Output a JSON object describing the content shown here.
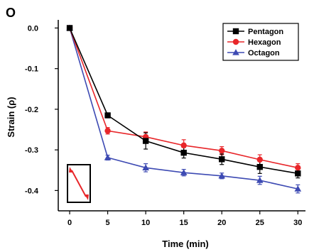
{
  "panel_label": "O",
  "chart_data": {
    "type": "line",
    "xlabel": "Time (min)",
    "ylabel": "Strain (ρ)",
    "x": [
      0,
      5,
      10,
      15,
      20,
      25,
      30
    ],
    "xlim": [
      -1.5,
      31
    ],
    "ylim": [
      -0.45,
      0.02
    ],
    "x_ticks": [
      0,
      5,
      10,
      15,
      20,
      25,
      30
    ],
    "y_ticks": [
      0.0,
      -0.1,
      -0.2,
      -0.3,
      -0.4
    ],
    "y_tick_labels": [
      "0.0",
      "-0.1",
      "-0.2",
      "-0.3",
      "-0.4"
    ],
    "grid": false,
    "legend_position": "top-right",
    "series": [
      {
        "name": "Pentagon",
        "color": "#000000",
        "marker": "square",
        "values": [
          0.0,
          -0.215,
          -0.278,
          -0.307,
          -0.323,
          -0.342,
          -0.358
        ],
        "errors": [
          0.004,
          0.006,
          0.02,
          0.013,
          0.013,
          0.016,
          0.011
        ]
      },
      {
        "name": "Hexagon",
        "color": "#e8262a",
        "marker": "circle",
        "values": [
          0.0,
          -0.253,
          -0.268,
          -0.289,
          -0.302,
          -0.324,
          -0.344
        ],
        "errors": [
          0.004,
          0.008,
          0.012,
          0.014,
          0.01,
          0.012,
          0.01
        ]
      },
      {
        "name": "Octagon",
        "color": "#3d4ab3",
        "marker": "triangle",
        "values": [
          0.0,
          -0.319,
          -0.344,
          -0.356,
          -0.364,
          -0.375,
          -0.396
        ],
        "errors": [
          0.004,
          0.006,
          0.01,
          0.008,
          0.007,
          0.01,
          0.01
        ]
      }
    ],
    "inset_icon": "diagonal-double-arrow-in-rectangle"
  }
}
